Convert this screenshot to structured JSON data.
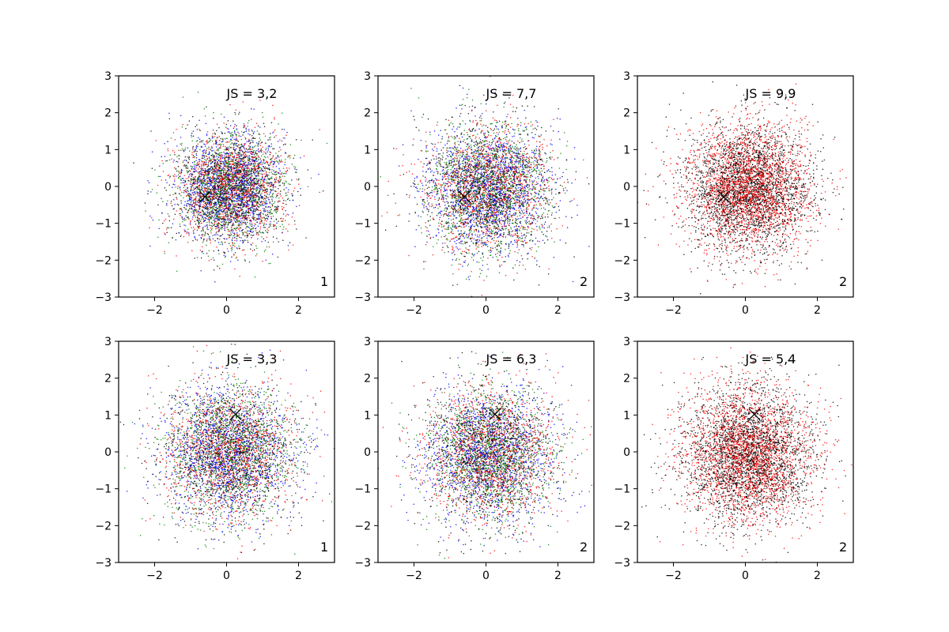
{
  "chart_data": [
    {
      "type": "scatter",
      "panel": "top-left",
      "annotation": "JS = 3,2",
      "corner_label": "1",
      "marker": {
        "x": -0.6,
        "y": -0.28
      },
      "series_colors": [
        "#0000ff",
        "#ff0000",
        "#008000",
        "#000000"
      ],
      "distribution": "gaussian",
      "n_points_approx": 5000,
      "spread_sd": 0.75,
      "xlim": [
        -3,
        3
      ],
      "ylim": [
        -3,
        3
      ],
      "xticks": [
        -2,
        0,
        2
      ],
      "yticks": [
        -3,
        -2,
        -1,
        0,
        1,
        2,
        3
      ],
      "tick_labels_x": [
        "−2",
        "0",
        "2"
      ],
      "tick_labels_y": [
        "−3",
        "−2",
        "−1",
        "0",
        "1",
        "2",
        "3"
      ]
    },
    {
      "type": "scatter",
      "panel": "top-middle",
      "annotation": "JS = 7,7",
      "corner_label": "2",
      "marker": {
        "x": -0.6,
        "y": -0.28
      },
      "series_colors": [
        "#0000ff",
        "#ff0000",
        "#008000",
        "#000000"
      ],
      "distribution": "gaussian",
      "n_points_approx": 5000,
      "spread_sd": 0.85,
      "xlim": [
        -3,
        3
      ],
      "ylim": [
        -3,
        3
      ],
      "xticks": [
        -2,
        0,
        2
      ],
      "yticks": [
        -3,
        -2,
        -1,
        0,
        1,
        2,
        3
      ],
      "tick_labels_x": [
        "−2",
        "0",
        "2"
      ],
      "tick_labels_y": [
        "−3",
        "−2",
        "−1",
        "0",
        "1",
        "2",
        "3"
      ]
    },
    {
      "type": "scatter",
      "panel": "top-right",
      "annotation": "JS = 9,9",
      "corner_label": "2",
      "marker": {
        "x": -0.6,
        "y": -0.28
      },
      "series_colors": [
        "#ff0000",
        "#000000"
      ],
      "distribution": "gaussian",
      "n_points_approx": 5000,
      "spread_sd": 0.85,
      "xlim": [
        -3,
        3
      ],
      "ylim": [
        -3,
        3
      ],
      "xticks": [
        -2,
        0,
        2
      ],
      "yticks": [
        -3,
        -2,
        -1,
        0,
        1,
        2,
        3
      ],
      "tick_labels_x": [
        "−2",
        "0",
        "2"
      ],
      "tick_labels_y": [
        "−3",
        "−2",
        "−1",
        "0",
        "1",
        "2",
        "3"
      ]
    },
    {
      "type": "scatter",
      "panel": "bottom-left",
      "annotation": "JS = 3,3",
      "corner_label": "1",
      "marker": {
        "x": 0.25,
        "y": 1.02
      },
      "series_colors": [
        "#0000ff",
        "#ff0000",
        "#008000",
        "#000000"
      ],
      "distribution": "gaussian",
      "n_points_approx": 5000,
      "spread_sd": 0.9,
      "xlim": [
        -3,
        3
      ],
      "ylim": [
        -3,
        3
      ],
      "xticks": [
        -2,
        0,
        2
      ],
      "yticks": [
        -3,
        -2,
        -1,
        0,
        1,
        2,
        3
      ],
      "tick_labels_x": [
        "−2",
        "0",
        "2"
      ],
      "tick_labels_y": [
        "−3",
        "−2",
        "−1",
        "0",
        "1",
        "2",
        "3"
      ]
    },
    {
      "type": "scatter",
      "panel": "bottom-middle",
      "annotation": "JS = 6,3",
      "corner_label": "2",
      "marker": {
        "x": 0.25,
        "y": 1.02
      },
      "series_colors": [
        "#0000ff",
        "#ff0000",
        "#008000",
        "#000000"
      ],
      "distribution": "gaussian",
      "n_points_approx": 5000,
      "spread_sd": 0.9,
      "xlim": [
        -3,
        3
      ],
      "ylim": [
        -3,
        3
      ],
      "xticks": [
        -2,
        0,
        2
      ],
      "yticks": [
        -3,
        -2,
        -1,
        0,
        1,
        2,
        3
      ],
      "tick_labels_x": [
        "−2",
        "0",
        "2"
      ],
      "tick_labels_y": [
        "−3",
        "−2",
        "−1",
        "0",
        "1",
        "2",
        "3"
      ]
    },
    {
      "type": "scatter",
      "panel": "bottom-right",
      "annotation": "JS = 5,4",
      "corner_label": "2",
      "marker": {
        "x": 0.25,
        "y": 1.02
      },
      "series_colors": [
        "#ff0000",
        "#000000"
      ],
      "distribution": "gaussian",
      "n_points_approx": 5000,
      "spread_sd": 0.9,
      "xlim": [
        -3,
        3
      ],
      "ylim": [
        -3,
        3
      ],
      "xticks": [
        -2,
        0,
        2
      ],
      "yticks": [
        -3,
        -2,
        -1,
        0,
        1,
        2,
        3
      ],
      "tick_labels_x": [
        "−2",
        "0",
        "2"
      ],
      "tick_labels_y": [
        "−3",
        "−2",
        "−1",
        "0",
        "1",
        "2",
        "3"
      ]
    }
  ]
}
